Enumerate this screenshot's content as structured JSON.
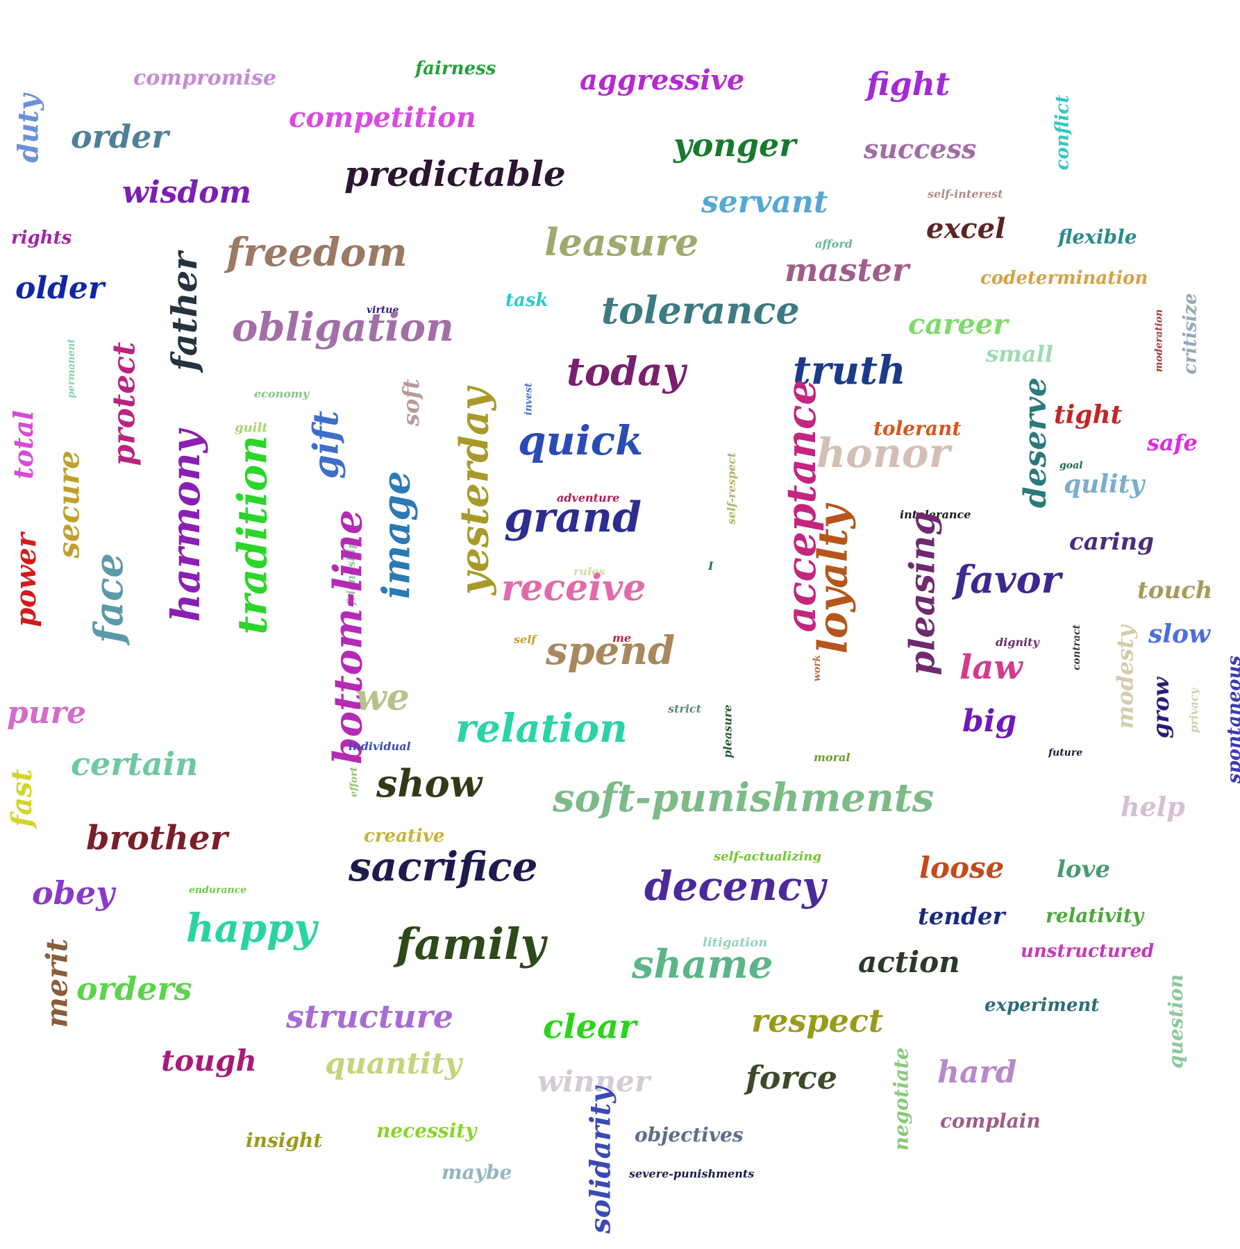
{
  "words": [
    {
      "text": "compromise",
      "color": "#c58ad7"
    },
    {
      "text": "fairness",
      "color": "#27a03b"
    },
    {
      "text": "aggressive",
      "color": "#b42ad0"
    },
    {
      "text": "fight",
      "color": "#a32ad8"
    },
    {
      "text": "duty",
      "color": "#6c8fdc"
    },
    {
      "text": "order",
      "color": "#4f7f99"
    },
    {
      "text": "competition",
      "color": "#d94be0"
    },
    {
      "text": "yonger",
      "color": "#177a2e"
    },
    {
      "text": "success",
      "color": "#a26ba5"
    },
    {
      "text": "conflict",
      "color": "#2ec9c0"
    },
    {
      "text": "predictable",
      "color": "#2b1530"
    },
    {
      "text": "wisdom",
      "color": "#7a1fb3"
    },
    {
      "text": "servant",
      "color": "#54a8d4"
    },
    {
      "text": "self-interest",
      "color": "#b08a8a"
    },
    {
      "text": "rights",
      "color": "#a125a5"
    },
    {
      "text": "freedom",
      "color": "#9a7965"
    },
    {
      "text": "leasure",
      "color": "#a0a86e"
    },
    {
      "text": "excel",
      "color": "#5c2323"
    },
    {
      "text": "flexible",
      "color": "#2b8b8b"
    },
    {
      "text": "afford",
      "color": "#6cb59e"
    },
    {
      "text": "master",
      "color": "#a05c8a"
    },
    {
      "text": "codetermination",
      "color": "#d4a244"
    },
    {
      "text": "older",
      "color": "#1126a6"
    },
    {
      "text": "father",
      "color": "#233340"
    },
    {
      "text": "task",
      "color": "#2ccac8"
    },
    {
      "text": "tolerance",
      "color": "#3d7a82"
    },
    {
      "text": "virtue",
      "color": "#2d1b8a"
    },
    {
      "text": "obligation",
      "color": "#a16fa5"
    },
    {
      "text": "career",
      "color": "#7dda6b"
    },
    {
      "text": "moderation",
      "color": "#a33b3b"
    },
    {
      "text": "critisize",
      "color": "#94a8b5"
    },
    {
      "text": "small",
      "color": "#9edcb0"
    },
    {
      "text": "permanent",
      "color": "#7dd6a8"
    },
    {
      "text": "protect",
      "color": "#b8247e"
    },
    {
      "text": "today",
      "color": "#7a1f6e"
    },
    {
      "text": "truth",
      "color": "#1a3a8a"
    },
    {
      "text": "economy",
      "color": "#8bc28b"
    },
    {
      "text": "soft",
      "color": "#b89a9a"
    },
    {
      "text": "invest",
      "color": "#4a6ec9"
    },
    {
      "text": "total",
      "color": "#d64bd6"
    },
    {
      "text": "guilt",
      "color": "#a6d66b"
    },
    {
      "text": "gift",
      "color": "#3d6ecc"
    },
    {
      "text": "tolerant",
      "color": "#d4571c"
    },
    {
      "text": "deserve",
      "color": "#2a7a7a"
    },
    {
      "text": "tight",
      "color": "#c42525"
    },
    {
      "text": "safe",
      "color": "#e02ae0"
    },
    {
      "text": "quick",
      "color": "#2a4bb5"
    },
    {
      "text": "honor",
      "color": "#d4bfb5"
    },
    {
      "text": "goal",
      "color": "#1a6b4d"
    },
    {
      "text": "secure",
      "color": "#bfa02a"
    },
    {
      "text": "harmony",
      "color": "#8a1fb3"
    },
    {
      "text": "tradition",
      "color": "#2ad62a"
    },
    {
      "text": "yesterday",
      "color": "#a89a2a"
    },
    {
      "text": "self-respect",
      "color": "#b5b56b"
    },
    {
      "text": "acceptance",
      "color": "#c4257e"
    },
    {
      "text": "qulity",
      "color": "#7aaec9"
    },
    {
      "text": "adventure",
      "color": "#b51a4d"
    },
    {
      "text": "image",
      "color": "#2a7ab5"
    },
    {
      "text": "grand",
      "color": "#2d2d8f"
    },
    {
      "text": "intolerance",
      "color": "#1a1a1a"
    },
    {
      "text": "caring",
      "color": "#4d2a7a"
    },
    {
      "text": "power",
      "color": "#d41a1a"
    },
    {
      "text": "face",
      "color": "#5c9aa8"
    },
    {
      "text": "friendship",
      "color": "#94c29a"
    },
    {
      "text": "loyalty",
      "color": "#b5561c"
    },
    {
      "text": "pleasing",
      "color": "#6e2a6e"
    },
    {
      "text": "favor",
      "color": "#3a2a8f"
    },
    {
      "text": "touch",
      "color": "#a89a5c"
    },
    {
      "text": "rules",
      "color": "#cfe0a0"
    },
    {
      "text": "receive",
      "color": "#e06ba8"
    },
    {
      "text": "I",
      "color": "#1a7a3a"
    },
    {
      "text": "bottom-line",
      "color": "#b52ab5"
    },
    {
      "text": "slow",
      "color": "#4a6edc"
    },
    {
      "text": "self",
      "color": "#c4a02a"
    },
    {
      "text": "me",
      "color": "#b5253a"
    },
    {
      "text": "spend",
      "color": "#a8885c"
    },
    {
      "text": "dignity",
      "color": "#6e2a6e"
    },
    {
      "text": "contract",
      "color": "#3a3a3a"
    },
    {
      "text": "modesty",
      "color": "#d4ccaa"
    },
    {
      "text": "work",
      "color": "#c46b3a"
    },
    {
      "text": "law",
      "color": "#d43a8a"
    },
    {
      "text": "grow",
      "color": "#2a1a7a"
    },
    {
      "text": "privacy",
      "color": "#c4d4aa"
    },
    {
      "text": "spontaneous",
      "color": "#3a3ab5"
    },
    {
      "text": "we",
      "color": "#b5c28a"
    },
    {
      "text": "pure",
      "color": "#d46bc9"
    },
    {
      "text": "strict",
      "color": "#5c8a6b"
    },
    {
      "text": "pleasure",
      "color": "#2a5c3a"
    },
    {
      "text": "relation",
      "color": "#2ad4a8"
    },
    {
      "text": "big",
      "color": "#6e1ab5"
    },
    {
      "text": "individual",
      "color": "#3a4ab5"
    },
    {
      "text": "moral",
      "color": "#6e9a2a"
    },
    {
      "text": "future",
      "color": "#1a1a3a"
    },
    {
      "text": "certain",
      "color": "#6ec9a0"
    },
    {
      "text": "fast",
      "color": "#d4d42a"
    },
    {
      "text": "effort",
      "color": "#94c26b"
    },
    {
      "text": "show",
      "color": "#333818"
    },
    {
      "text": "soft-punishments",
      "color": "#7cba88"
    },
    {
      "text": "help",
      "color": "#d4bfd4"
    },
    {
      "text": "brother",
      "color": "#7a1f2a"
    },
    {
      "text": "creative",
      "color": "#c4b53a"
    },
    {
      "text": "sacrifice",
      "color": "#1f1a4d"
    },
    {
      "text": "self-actualizing",
      "color": "#6ec92a"
    },
    {
      "text": "loose",
      "color": "#c44a1a"
    },
    {
      "text": "love",
      "color": "#4a9a6e"
    },
    {
      "text": "obey",
      "color": "#8a3ac9"
    },
    {
      "text": "endurance",
      "color": "#6ec94a"
    },
    {
      "text": "decency",
      "color": "#4a2a9a"
    },
    {
      "text": "tender",
      "color": "#1a2a7a"
    },
    {
      "text": "relativity",
      "color": "#4aa83a"
    },
    {
      "text": "happy",
      "color": "#2ad4a0"
    },
    {
      "text": "family",
      "color": "#2d4a1a"
    },
    {
      "text": "litigation",
      "color": "#94d4b5"
    },
    {
      "text": "unstructured",
      "color": "#c43ab5"
    },
    {
      "text": "merit",
      "color": "#8a5c3a"
    },
    {
      "text": "shame",
      "color": "#5cb588"
    },
    {
      "text": "action",
      "color": "#2a3a2a"
    },
    {
      "text": "orders",
      "color": "#5cd44a"
    },
    {
      "text": "experiment",
      "color": "#2a6e7a"
    },
    {
      "text": "question",
      "color": "#8ac99a"
    },
    {
      "text": "structure",
      "color": "#a86bd4"
    },
    {
      "text": "clear",
      "color": "#2ad41a"
    },
    {
      "text": "respect",
      "color": "#9a9a1a"
    },
    {
      "text": "tough",
      "color": "#a81a7a"
    },
    {
      "text": "quantity",
      "color": "#c4d47a"
    },
    {
      "text": "winner",
      "color": "#d4ccd4"
    },
    {
      "text": "force",
      "color": "#3a4a2a"
    },
    {
      "text": "negotiate",
      "color": "#8ac97a"
    },
    {
      "text": "hard",
      "color": "#b58ac9"
    },
    {
      "text": "complain",
      "color": "#a05c8a"
    },
    {
      "text": "insight",
      "color": "#9a9a1a"
    },
    {
      "text": "necessity",
      "color": "#8ad42a"
    },
    {
      "text": "solidarity",
      "color": "#3a4ab5"
    },
    {
      "text": "objectives",
      "color": "#5c6e8a"
    },
    {
      "text": "maybe",
      "color": "#94b5c2"
    },
    {
      "text": "severe-punishments",
      "color": "#1a1a4d"
    }
  ]
}
